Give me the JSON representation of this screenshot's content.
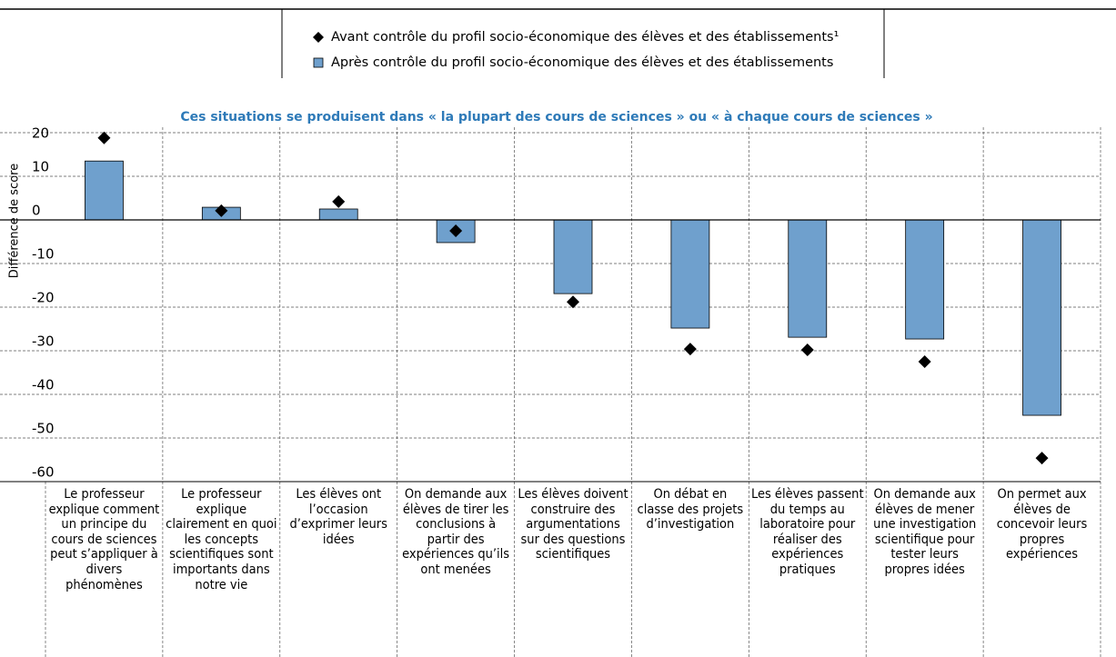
{
  "chart_data": {
    "type": "bar",
    "subtitle": "Ces situations se produisent dans « la plupart des cours de sciences » ou « à chaque cours de sciences »",
    "y_label": "Différence de score",
    "categories": [
      "Le professeur explique comment un principe du cours de sciences peut s’appliquer à divers phénomènes",
      "Le professeur explique clairement en quoi les concepts scientifiques sont importants dans notre vie",
      "Les élèves ont l’occasion d’exprimer leurs idées",
      "On demande aux élèves de tirer les conclusions à partir des expériences qu’ils ont menées",
      "Les élèves doivent construire des argumentations sur des questions scientifiques",
      "On débat en classe des projets d’investigation",
      "Les élèves passent du temps au laboratoire pour réaliser des expériences pratiques",
      "On demande aux élèves de mener une investigation scientifique pour tester leurs propres idées",
      "On permet aux élèves de concevoir leurs propres expériences"
    ],
    "series": [
      {
        "name": "Avant contrôle du profil socio-économique des élèves et des établissements¹",
        "color": "#000000",
        "marker": "diamond",
        "values": [
          18.8,
          2.1,
          4.2,
          -2.5,
          -18.8,
          -29.6,
          -29.8,
          -32.5,
          -54.6
        ]
      },
      {
        "name": "Après contrôle du profil socio-économique des élèves et des établissements",
        "color": "#6fa0cd",
        "marker": "bar",
        "values": [
          13.5,
          2.9,
          2.5,
          -5.2,
          -16.9,
          -24.8,
          -26.9,
          -27.3,
          -44.8
        ]
      }
    ],
    "ylim": [
      -60,
      20
    ],
    "yticks": [
      -60,
      -50,
      -40,
      -30,
      -20,
      -10,
      0,
      10,
      20
    ],
    "grid": true
  }
}
